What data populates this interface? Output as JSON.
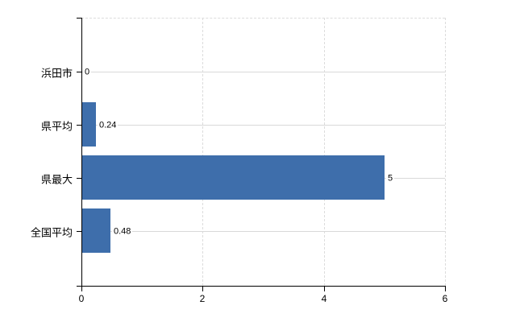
{
  "chart_data": {
    "type": "bar",
    "orientation": "horizontal",
    "title": "",
    "xlabel": "",
    "ylabel": "",
    "categories": [
      "浜田市",
      "県平均",
      "県最大",
      "全国平均"
    ],
    "values": [
      0,
      0.24,
      5,
      0.48
    ],
    "value_labels": [
      "0",
      "0.24",
      "5",
      "0.48"
    ],
    "xlim": [
      0,
      6
    ],
    "x_ticks": [
      0,
      2,
      4,
      6
    ],
    "x_tick_labels": [
      "0",
      "2",
      "4",
      "6"
    ],
    "grid": {
      "row_lines": true,
      "vertical_dashed_at": [
        2,
        4,
        6
      ],
      "top_border_dashed": true
    },
    "legend": null,
    "colors": {
      "bar": "#3E6EAB",
      "grid_solid": "#D9D9D9",
      "grid_dashed": "#DCDCDC",
      "axis": "#000000",
      "text": "#000000",
      "background": "#FFFFFF"
    }
  }
}
